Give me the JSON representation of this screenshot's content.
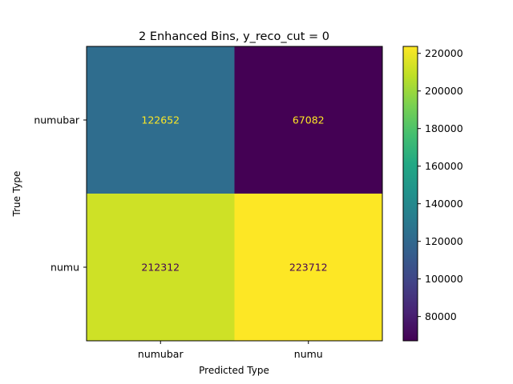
{
  "chart_data": {
    "type": "heatmap",
    "title": "2 Enhanced Bins, y_reco_cut = 0",
    "xlabel": "Predicted Type",
    "ylabel": "True Type",
    "x_categories": [
      "numubar",
      "numu"
    ],
    "y_categories": [
      "numubar",
      "numu"
    ],
    "values": [
      [
        122652,
        67082
      ],
      [
        212312,
        223712
      ]
    ],
    "colormap": "viridis",
    "colorbar": {
      "vmin": 67082,
      "vmax": 223712,
      "ticks": [
        80000,
        100000,
        120000,
        140000,
        160000,
        180000,
        200000,
        220000
      ]
    }
  }
}
